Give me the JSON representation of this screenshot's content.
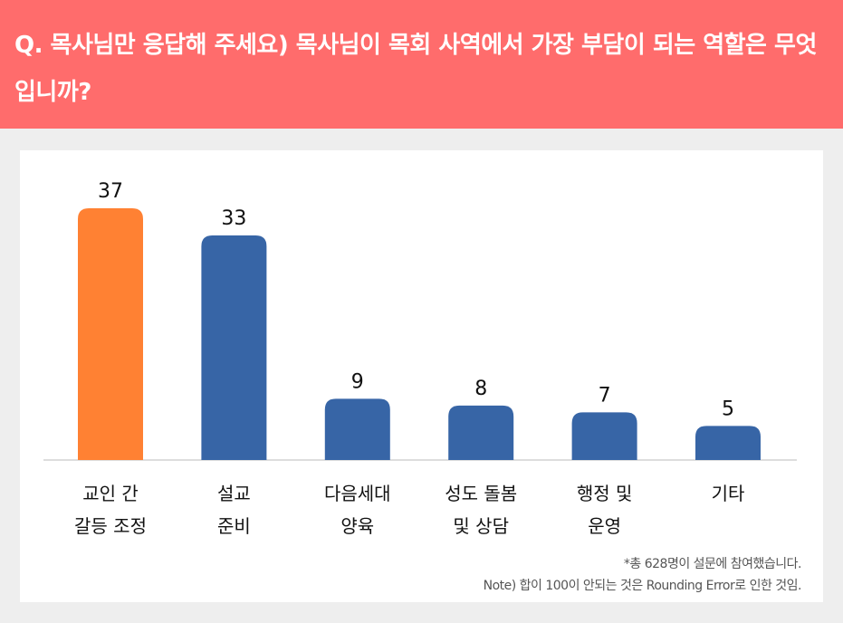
{
  "header": {
    "title": "Q. 목사님만 응답해 주세요) 목사님이 목회 사역에서 가장 부담이 되는 역할은 무엇입니까?"
  },
  "chart_data": {
    "type": "bar",
    "categories": [
      [
        "교인 간",
        "갈등 조정"
      ],
      [
        "설교",
        "준비"
      ],
      [
        "다음세대",
        "양육"
      ],
      [
        "성도 돌봄",
        "및 상담"
      ],
      [
        "행정 및",
        "운영"
      ],
      [
        "기타"
      ]
    ],
    "values": [
      37,
      33,
      9,
      8,
      7,
      5
    ],
    "colors": [
      "#ff8133",
      "#3765a6",
      "#3765a6",
      "#3765a6",
      "#3765a6",
      "#3765a6"
    ],
    "ylim": [
      0,
      40
    ],
    "unit": "%"
  },
  "notes": {
    "sample": "*총 628명이 설문에 참여했습니다.",
    "rounding": "Note) 합이 100이 안되는 것은 Rounding Error로 인한 것임."
  }
}
